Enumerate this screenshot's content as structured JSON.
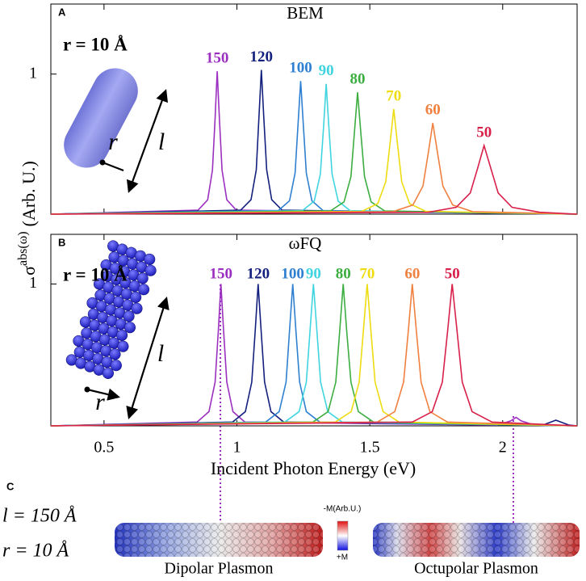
{
  "chart_data": [
    {
      "type": "line",
      "panel": "A",
      "title": "BEM",
      "annotation": "r = 10 Å",
      "inset_labels": [
        "r",
        "l"
      ],
      "xlim": [
        0.3,
        2.28
      ],
      "xticks": [
        0.5,
        1,
        1.5,
        2
      ],
      "ylim": [
        0,
        1.5
      ],
      "yticks": [
        1
      ],
      "series": [
        {
          "name": "150",
          "color": "#9b30c0",
          "x": [
            0.3,
            0.854,
            0.89,
            0.908,
            0.918,
            0.926,
            0.934,
            0.944,
            0.962,
            0.998,
            2.28
          ],
          "values": [
            0,
            0.028,
            0.102,
            0.314,
            0.684,
            1.02,
            0.684,
            0.314,
            0.102,
            0.028,
            0
          ]
        },
        {
          "name": "120",
          "color": "#14207e",
          "x": [
            0.3,
            1.014,
            1.053,
            1.073,
            1.083,
            1.092,
            1.101,
            1.112,
            1.131,
            1.17,
            2.28
          ],
          "values": [
            0,
            0.028,
            0.103,
            0.317,
            0.691,
            1.03,
            0.691,
            0.317,
            0.103,
            0.028,
            0
          ]
        },
        {
          "name": "100",
          "color": "#2f80d0",
          "x": [
            0.3,
            1.156,
            1.198,
            1.219,
            1.23,
            1.24,
            1.25,
            1.261,
            1.282,
            1.324,
            2.28
          ],
          "values": [
            0,
            0.026,
            0.095,
            0.293,
            0.637,
            0.95,
            0.637,
            0.293,
            0.095,
            0.026,
            0
          ]
        },
        {
          "name": "90",
          "color": "#40d4e0",
          "x": [
            0.3,
            1.246,
            1.291,
            1.314,
            1.326,
            1.336,
            1.346,
            1.358,
            1.381,
            1.426,
            2.28
          ],
          "values": [
            0,
            0.025,
            0.093,
            0.286,
            0.624,
            0.93,
            0.624,
            0.286,
            0.093,
            0.025,
            0
          ]
        },
        {
          "name": "80",
          "color": "#3cae40",
          "x": [
            0.3,
            1.352,
            1.403,
            1.429,
            1.442,
            1.454,
            1.466,
            1.48,
            1.505,
            1.556,
            2.28
          ],
          "values": [
            0,
            0.023,
            0.087,
            0.268,
            0.584,
            0.87,
            0.584,
            0.268,
            0.087,
            0.023,
            0
          ]
        },
        {
          "name": "70",
          "color": "#eedc10",
          "x": [
            0.3,
            1.47,
            1.53,
            1.56,
            1.576,
            1.59,
            1.604,
            1.62,
            1.65,
            1.71,
            2.28
          ],
          "values": [
            0,
            0.02,
            0.075,
            0.231,
            0.503,
            0.75,
            0.503,
            0.231,
            0.075,
            0.02,
            0
          ]
        },
        {
          "name": "60",
          "color": "#f08040",
          "x": [
            0.3,
            1.587,
            1.662,
            1.7,
            1.72,
            1.737,
            1.755,
            1.775,
            1.812,
            1.887,
            2.28
          ],
          "values": [
            0,
            0.018,
            0.065,
            0.2,
            0.436,
            0.65,
            0.436,
            0.2,
            0.065,
            0.018,
            0
          ]
        },
        {
          "name": "50",
          "color": "#d8204a",
          "x": [
            0.3,
            1.72,
            1.825,
            1.878,
            1.906,
            1.93,
            1.955,
            1.983,
            2.035,
            2.14,
            2.28
          ],
          "values": [
            0,
            0.013,
            0.049,
            0.151,
            0.329,
            0.49,
            0.329,
            0.151,
            0.049,
            0.013,
            0
          ]
        }
      ]
    },
    {
      "type": "line",
      "panel": "B",
      "title": "ωFQ",
      "annotation": "r = 10 Å",
      "inset_labels": [
        "r",
        "l"
      ],
      "xlim": [
        0.3,
        2.28
      ],
      "xticks": [
        0.5,
        1,
        1.5,
        2
      ],
      "ylim": [
        0,
        1.35
      ],
      "yticks": [
        1
      ],
      "x_label": "Incident Photon Energy (eV)",
      "series": [
        {
          "name": "150",
          "color": "#9b30c0",
          "x": [
            0.3,
            0.85,
            0.895,
            0.918,
            0.93,
            0.94,
            0.95,
            0.962,
            0.985,
            1.03,
            1.98,
            2.03,
            2.05,
            2.07,
            2.12,
            2.28
          ],
          "values": [
            0,
            0.027,
            0.1,
            0.308,
            0.671,
            1,
            0.671,
            0.308,
            0.1,
            0.027,
            0.005,
            0.035,
            0.06,
            0.035,
            0.005,
            0
          ]
        },
        {
          "name": "120",
          "color": "#14207e",
          "x": [
            0.3,
            0.984,
            1.032,
            1.056,
            1.069,
            1.08,
            1.091,
            1.104,
            1.128,
            1.176,
            2.15,
            2.2,
            2.25,
            2.28
          ],
          "values": [
            0,
            0.027,
            0.1,
            0.308,
            0.671,
            1,
            0.671,
            0.308,
            0.1,
            0.027,
            0.005,
            0.04,
            0.005,
            0
          ]
        },
        {
          "name": "100",
          "color": "#2f80d0",
          "x": [
            0.3,
            1.108,
            1.159,
            1.185,
            1.198,
            1.21,
            1.222,
            1.236,
            1.261,
            1.312,
            2.28
          ],
          "values": [
            0,
            0.027,
            0.1,
            0.308,
            0.671,
            1,
            0.671,
            0.308,
            0.1,
            0.027,
            0
          ]
        },
        {
          "name": "90",
          "color": "#40d4e0",
          "x": [
            0.3,
            1.18,
            1.234,
            1.261,
            1.275,
            1.288,
            1.301,
            1.315,
            1.342,
            1.396,
            2.28
          ],
          "values": [
            0,
            0.027,
            0.1,
            0.308,
            0.671,
            1,
            0.671,
            0.308,
            0.1,
            0.027,
            0
          ]
        },
        {
          "name": "80",
          "color": "#3cae40",
          "x": [
            0.3,
            1.286,
            1.343,
            1.372,
            1.387,
            1.4,
            1.413,
            1.429,
            1.457,
            1.514,
            2.28
          ],
          "values": [
            0,
            0.027,
            0.1,
            0.308,
            0.671,
            1,
            0.671,
            0.308,
            0.1,
            0.027,
            0
          ]
        },
        {
          "name": "70",
          "color": "#eedc10",
          "x": [
            0.3,
            1.37,
            1.43,
            1.46,
            1.476,
            1.49,
            1.504,
            1.52,
            1.55,
            1.61,
            2.28
          ],
          "values": [
            0,
            0.027,
            0.1,
            0.308,
            0.671,
            1,
            0.671,
            0.308,
            0.1,
            0.027,
            0
          ]
        },
        {
          "name": "60",
          "color": "#f08040",
          "x": [
            0.3,
            1.528,
            1.594,
            1.627,
            1.645,
            1.66,
            1.675,
            1.693,
            1.726,
            1.792,
            2.28
          ],
          "values": [
            0,
            0.027,
            0.1,
            0.308,
            0.671,
            1,
            0.671,
            0.308,
            0.1,
            0.027,
            0
          ]
        },
        {
          "name": "50",
          "color": "#d8204a",
          "x": [
            0.3,
            1.66,
            1.735,
            1.773,
            1.793,
            1.81,
            1.828,
            1.848,
            1.885,
            1.96,
            2.28
          ],
          "values": [
            0,
            0.027,
            0.1,
            0.308,
            0.671,
            1,
            0.671,
            0.308,
            0.1,
            0.027,
            0
          ]
        }
      ]
    }
  ],
  "y_label": {
    "base": "σ",
    "sup": "abs(ω)",
    "unit": "(Arb. U.)"
  },
  "panel_c": {
    "panel": "C",
    "length": "l = 150 Å",
    "radius": "r = 10 Å",
    "dipolar": "Dipolar Plasmon",
    "octupolar": "Octupolar Plasmon",
    "colorbar_top": "-M(Arb.U.)",
    "colorbar_bottom": "+M"
  }
}
